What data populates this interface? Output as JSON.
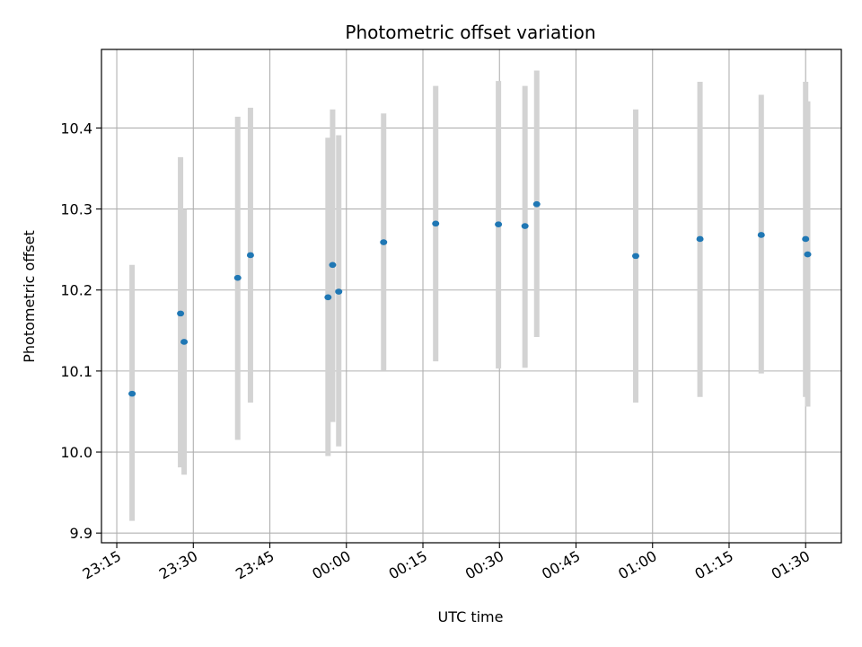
{
  "chart_data": {
    "type": "scatter",
    "title": "Photometric offset variation",
    "xlabel": "UTC time",
    "ylabel": "Photometric offset",
    "xlim": [
      "23:12",
      "01:37"
    ],
    "ylim": [
      9.888,
      10.497
    ],
    "xticks": [
      "23:15",
      "23:30",
      "23:45",
      "00:00",
      "00:15",
      "00:30",
      "00:45",
      "01:00",
      "01:15",
      "01:30"
    ],
    "yticks": [
      "9.9",
      "10.0",
      "10.1",
      "10.2",
      "10.3",
      "10.4"
    ],
    "grid": true,
    "marker_color": "#1f77b4",
    "errorbar_color": "#d3d3d3",
    "points": [
      {
        "x": "23:18",
        "y": 10.072,
        "ylow": 9.915,
        "yhigh": 10.231
      },
      {
        "x": "23:27.5",
        "y": 10.171,
        "ylow": 9.981,
        "yhigh": 10.364
      },
      {
        "x": "23:28.2",
        "y": 10.136,
        "ylow": 9.972,
        "yhigh": 10.3
      },
      {
        "x": "23:38.7",
        "y": 10.215,
        "ylow": 10.015,
        "yhigh": 10.414
      },
      {
        "x": "23:41.2",
        "y": 10.243,
        "ylow": 10.061,
        "yhigh": 10.425
      },
      {
        "x": "23:56.4",
        "y": 10.191,
        "ylow": 9.995,
        "yhigh": 10.388
      },
      {
        "x": "23:57.3",
        "y": 10.231,
        "ylow": 10.037,
        "yhigh": 10.423
      },
      {
        "x": "23:58.5",
        "y": 10.198,
        "ylow": 10.007,
        "yhigh": 10.391
      },
      {
        "x": "00:07.3",
        "y": 10.259,
        "ylow": 10.1,
        "yhigh": 10.418
      },
      {
        "x": "00:17.5",
        "y": 10.282,
        "ylow": 10.112,
        "yhigh": 10.452
      },
      {
        "x": "00:29.8",
        "y": 10.281,
        "ylow": 10.103,
        "yhigh": 10.458
      },
      {
        "x": "00:35",
        "y": 10.279,
        "ylow": 10.104,
        "yhigh": 10.452
      },
      {
        "x": "00:37.3",
        "y": 10.306,
        "ylow": 10.142,
        "yhigh": 10.471
      },
      {
        "x": "00:56.7",
        "y": 10.242,
        "ylow": 10.061,
        "yhigh": 10.423
      },
      {
        "x": "01:09.3",
        "y": 10.263,
        "ylow": 10.068,
        "yhigh": 10.457
      },
      {
        "x": "01:21.3",
        "y": 10.268,
        "ylow": 10.097,
        "yhigh": 10.441
      },
      {
        "x": "01:30",
        "y": 10.263,
        "ylow": 10.068,
        "yhigh": 10.457
      },
      {
        "x": "01:30.4",
        "y": 10.244,
        "ylow": 10.056,
        "yhigh": 10.433
      }
    ]
  }
}
